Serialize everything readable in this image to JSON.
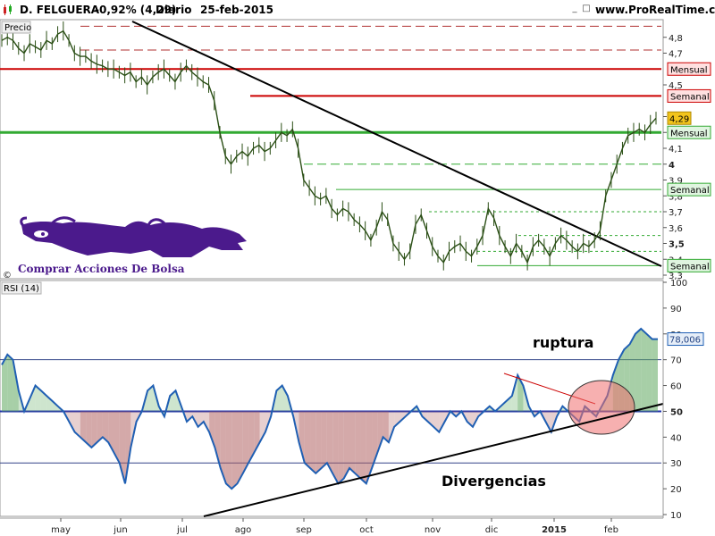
{
  "header": {
    "instrument": "D. FELGUERA",
    "change": "-0,92% (4,29)",
    "period": "Diario",
    "date": "25-feb-2015",
    "site": "www.ProRealTime.com"
  },
  "logo": {
    "text": "Comprar Acciones De Bolsa",
    "copyright": "©",
    "color": "#4b1a8c"
  },
  "colors": {
    "price_line": "#2b4f16",
    "rsi_line": "#1f5fb3",
    "mensual": "#cc0000",
    "green_level": "#33aa33",
    "trendline": "#000000",
    "current_price": "#f2c41c",
    "rsi_red_fill": "#b06262",
    "rsi_green_fill": "#5ea85e"
  },
  "chart_data": [
    {
      "type": "line",
      "title": "Precio",
      "ylim": [
        3.3,
        4.9
      ],
      "yticks": [
        3.3,
        3.4,
        3.5,
        3.6,
        3.7,
        3.8,
        3.9,
        4.0,
        4.1,
        4.2,
        4.3,
        4.5,
        4.7,
        4.8
      ],
      "ytick_labels": [
        "3,3",
        "3,4",
        "3,5",
        "3,6",
        "3,7",
        "3,8",
        "3,9",
        "4",
        "4,1",
        "4,2",
        "4,3",
        "4,5",
        "4,7",
        "4,8"
      ],
      "xlabels": [
        "may",
        "jun",
        "jul",
        "ago",
        "sep",
        "oct",
        "nov",
        "dic",
        "2015",
        "feb"
      ],
      "last_value": 4.29,
      "last_value_label": "4,29",
      "series": [
        {
          "values": [
            4.78,
            4.8,
            4.78,
            4.73,
            4.7,
            4.76,
            4.74,
            4.72,
            4.78,
            4.76,
            4.82,
            4.84,
            4.78,
            4.7,
            4.68,
            4.68,
            4.65,
            4.63,
            4.62,
            4.6,
            4.6,
            4.58,
            4.56,
            4.58,
            4.52,
            4.55,
            4.5,
            4.55,
            4.58,
            4.6,
            4.56,
            4.52,
            4.58,
            4.62,
            4.58,
            4.55,
            4.52,
            4.5,
            4.4,
            4.2,
            4.05,
            4.0,
            4.05,
            4.08,
            4.05,
            4.1,
            4.12,
            4.08,
            4.1,
            4.15,
            4.2,
            4.18,
            4.22,
            4.1,
            3.9,
            3.85,
            3.8,
            3.78,
            3.8,
            3.72,
            3.68,
            3.72,
            3.7,
            3.65,
            3.62,
            3.58,
            3.52,
            3.6,
            3.7,
            3.65,
            3.5,
            3.45,
            3.4,
            3.45,
            3.62,
            3.68,
            3.58,
            3.48,
            3.42,
            3.38,
            3.45,
            3.48,
            3.5,
            3.45,
            3.42,
            3.48,
            3.55,
            3.72,
            3.66,
            3.55,
            3.48,
            3.42,
            3.5,
            3.45,
            3.38,
            3.48,
            3.52,
            3.48,
            3.42,
            3.5,
            3.55,
            3.52,
            3.48,
            3.45,
            3.5,
            3.48,
            3.52,
            3.58,
            3.8,
            3.9,
            4.0,
            4.1,
            4.18,
            4.2,
            4.22,
            4.2,
            4.25,
            4.29
          ]
        }
      ],
      "levels": [
        {
          "value": 4.6,
          "label": "Mensual",
          "kind": "mensual"
        },
        {
          "value": 4.43,
          "label": "Semanal",
          "kind": "semanal-red"
        },
        {
          "value": 4.2,
          "label": "Mensual",
          "kind": "mensual-green"
        },
        {
          "value": 3.84,
          "label": "Semanal",
          "kind": "semanal-green"
        },
        {
          "value": 3.36,
          "label": "Semanal",
          "kind": "semanal-green"
        }
      ],
      "dashed_resistances": [
        4.87,
        4.72
      ],
      "green_dashed": [
        4.0,
        3.7,
        3.55,
        3.45
      ]
    },
    {
      "type": "area",
      "title": "RSI (14)",
      "ylim": [
        10,
        100
      ],
      "yticks": [
        10,
        20,
        30,
        40,
        50,
        60,
        70,
        80,
        90,
        100
      ],
      "ytick_labels": [
        "10",
        "20",
        "30",
        "40",
        "50",
        "60",
        "70",
        "80",
        "90",
        "100"
      ],
      "reference_lines": [
        70,
        50,
        30
      ],
      "last_value": 78.006,
      "last_value_label": "78,006",
      "series": [
        {
          "values": [
            68,
            72,
            70,
            58,
            50,
            55,
            60,
            58,
            56,
            54,
            52,
            50,
            46,
            42,
            40,
            38,
            36,
            38,
            40,
            38,
            34,
            30,
            22,
            36,
            46,
            50,
            58,
            60,
            52,
            48,
            56,
            58,
            52,
            46,
            48,
            44,
            46,
            42,
            36,
            28,
            22,
            20,
            22,
            26,
            30,
            34,
            38,
            42,
            48,
            58,
            60,
            56,
            48,
            38,
            30,
            28,
            26,
            28,
            30,
            26,
            22,
            24,
            28,
            26,
            24,
            22,
            28,
            34,
            40,
            38,
            44,
            46,
            48,
            50,
            52,
            48,
            46,
            44,
            42,
            46,
            50,
            48,
            50,
            46,
            44,
            48,
            50,
            52,
            50,
            52,
            54,
            56,
            64,
            60,
            52,
            48,
            50,
            46,
            42,
            48,
            52,
            50,
            48,
            46,
            52,
            50,
            48,
            52,
            56,
            64,
            70,
            74,
            76,
            80,
            82,
            80,
            78,
            78
          ]
        }
      ],
      "annotations": {
        "breakout": "ruptura",
        "divergence": "Divergencias"
      }
    }
  ]
}
